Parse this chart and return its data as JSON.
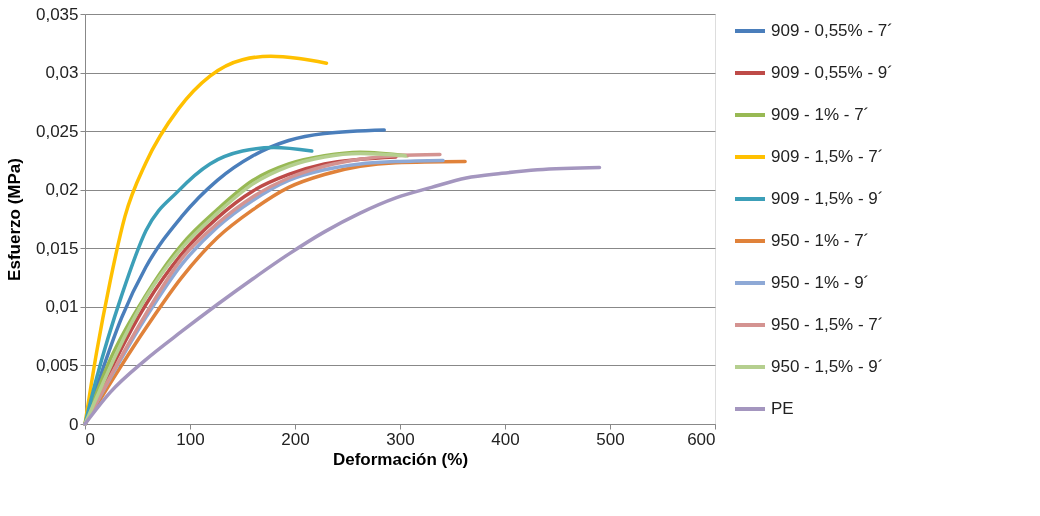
{
  "chart_data": {
    "type": "line",
    "xlabel": "Deformación (%)",
    "ylabel": "Esfuerzo (MPa)",
    "xlim": [
      0,
      600
    ],
    "xticks": [
      0,
      100,
      200,
      300,
      400,
      500,
      600
    ],
    "ylim": [
      0,
      0.035
    ],
    "yticks": [
      {
        "value": 0,
        "label": "0"
      },
      {
        "value": 0.005,
        "label": "0,005"
      },
      {
        "value": 0.01,
        "label": "0,01"
      },
      {
        "value": 0.015,
        "label": "0,015"
      },
      {
        "value": 0.02,
        "label": "0,02"
      },
      {
        "value": 0.025,
        "label": "0,025"
      },
      {
        "value": 0.03,
        "label": "0,03"
      },
      {
        "value": 0.035,
        "label": "0,035"
      }
    ],
    "grid": "y",
    "legend": "right",
    "marker": "none",
    "line_style": "solid",
    "series": [
      {
        "name": "909 - 0,55% - 7´",
        "color": "#4a7ebb",
        "x": [
          0,
          14,
          35,
          58,
          92,
          126,
          160,
          194,
          228,
          285
        ],
        "values": [
          0,
          0.0039,
          0.0091,
          0.0134,
          0.0177,
          0.0208,
          0.0229,
          0.0242,
          0.0248,
          0.0251
        ]
      },
      {
        "name": "909 - 0,55% - 9´",
        "color": "#be4b48",
        "x": [
          0,
          58,
          92,
          126,
          160,
          194,
          228,
          262,
          296
        ],
        "values": [
          0,
          0.0102,
          0.0145,
          0.0176,
          0.0199,
          0.0213,
          0.0222,
          0.0226,
          0.0228
        ]
      },
      {
        "name": "909 - 1% - 7´",
        "color": "#98b954",
        "x": [
          0,
          24,
          58,
          92,
          126,
          160,
          194,
          228,
          262,
          307
        ],
        "values": [
          0,
          0.0055,
          0.011,
          0.0153,
          0.0183,
          0.0208,
          0.0222,
          0.0229,
          0.0232,
          0.0229
        ]
      },
      {
        "name": "909 - 1,5% - 7´",
        "color": "#ffc000",
        "x": [
          0,
          11,
          24,
          38,
          58,
          89,
          119,
          150,
          177,
          204,
          230
        ],
        "values": [
          0,
          0.0061,
          0.0122,
          0.0177,
          0.0223,
          0.0269,
          0.0297,
          0.0311,
          0.0314,
          0.0312,
          0.0308
        ]
      },
      {
        "name": "909 - 1,5% - 9´",
        "color": "#3c9fb8",
        "x": [
          0,
          11,
          35,
          58,
          89,
          119,
          150,
          180,
          216
        ],
        "values": [
          0,
          0.0039,
          0.011,
          0.0165,
          0.0199,
          0.0222,
          0.0233,
          0.0236,
          0.0233
        ]
      },
      {
        "name": "950 - 1% - 7´",
        "color": "#e0823a",
        "x": [
          0,
          58,
          92,
          126,
          160,
          194,
          228,
          262,
          296,
          362
        ],
        "values": [
          0,
          0.0082,
          0.0125,
          0.0159,
          0.0183,
          0.0202,
          0.0213,
          0.022,
          0.0223,
          0.0224
        ]
      },
      {
        "name": "950 - 1% - 9´",
        "color": "#8ea9d6",
        "x": [
          0,
          58,
          92,
          126,
          160,
          194,
          228,
          262,
          296,
          341
        ],
        "values": [
          0,
          0.0091,
          0.0136,
          0.0168,
          0.0191,
          0.0208,
          0.0217,
          0.0222,
          0.0224,
          0.0225
        ]
      },
      {
        "name": "950 - 1,5% - 7´",
        "color": "#d49391",
        "x": [
          0,
          58,
          92,
          126,
          160,
          194,
          228,
          262,
          296,
          338
        ],
        "values": [
          0,
          0.0094,
          0.0141,
          0.0171,
          0.0194,
          0.021,
          0.022,
          0.0226,
          0.0229,
          0.023
        ]
      },
      {
        "name": "950 - 1,5% - 9´",
        "color": "#b5cf8f",
        "x": [
          0,
          58,
          92,
          126,
          160,
          194,
          228,
          262,
          305
        ],
        "values": [
          0,
          0.0108,
          0.015,
          0.018,
          0.0205,
          0.022,
          0.0228,
          0.0231,
          0.0229
        ]
      },
      {
        "name": "PE",
        "color": "#a496bf",
        "x": [
          0,
          24,
          58,
          92,
          126,
          160,
          194,
          228,
          262,
          296,
          330,
          363,
          397,
          431,
          490
        ],
        "values": [
          0,
          0.0027,
          0.0055,
          0.0079,
          0.0102,
          0.0124,
          0.0145,
          0.0164,
          0.018,
          0.0193,
          0.0202,
          0.021,
          0.0214,
          0.0217,
          0.0219
        ]
      }
    ]
  }
}
